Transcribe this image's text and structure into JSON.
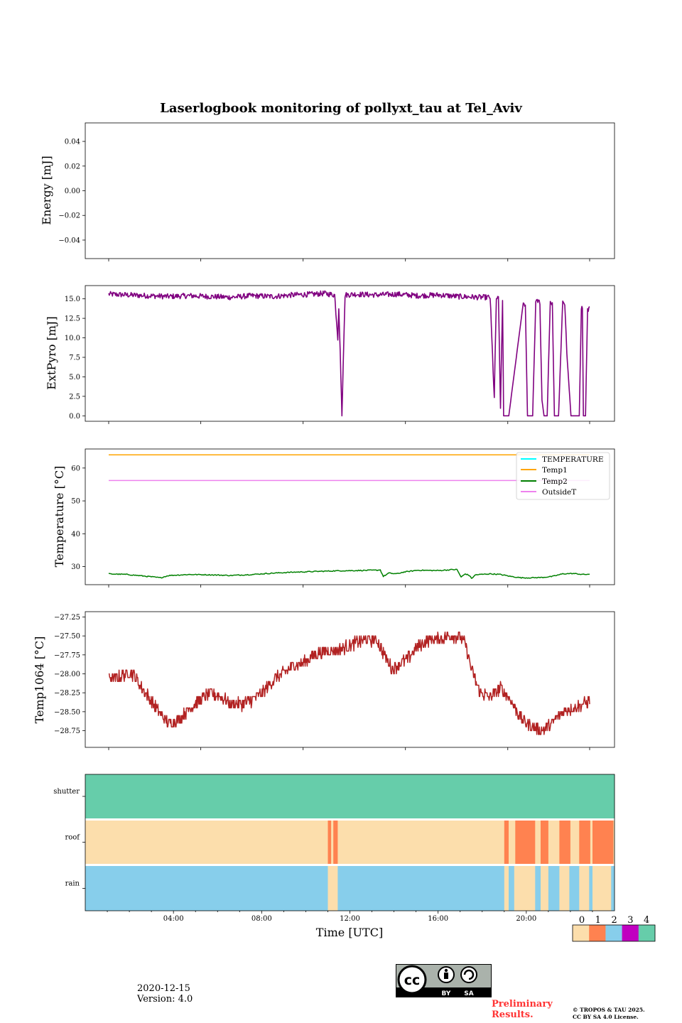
{
  "title": "Laserlogbook monitoring of pollyxt_tau at Tel_Aviv",
  "footer": {
    "date": "2020-12-15",
    "version": "Version: 4.0",
    "preliminary": [
      "Preliminary",
      "Results."
    ],
    "copyright": [
      "© TROPOS & TAU 2025.",
      "CC BY SA 4.0 License."
    ],
    "license_badge": {
      "by": "BY",
      "sa": "SA"
    }
  },
  "colors": {
    "energy": "#800080",
    "extpyro": "#800080",
    "TEMPERATURE": "#00ffff",
    "Temp1": "#ffa500",
    "Temp2": "#008000",
    "OutsideT": "#ee82ee",
    "temp1064": "#b22222",
    "flag_levels": [
      "#fcdeac",
      "#ff8250",
      "#87ceeb",
      "#c000c0",
      "#66cdaa"
    ]
  },
  "chart_data": [
    {
      "type": "line",
      "name": "energy",
      "ylabel": "Energy [mJ]",
      "ylim": [
        -0.055,
        0.055
      ],
      "yticks": [
        0.04,
        0.02,
        0.0,
        -0.02,
        -0.04
      ],
      "ytick_labels": [
        "0.04",
        "0.02",
        "0.00",
        "−0.02",
        "−0.04"
      ],
      "series": []
    },
    {
      "type": "line",
      "name": "extpyro",
      "ylabel": "ExtPyro [mJ]",
      "ylim": [
        -0.7,
        16.7
      ],
      "yticks": [
        15.0,
        12.5,
        10.0,
        7.5,
        5.0,
        2.5,
        0.0
      ],
      "ytick_labels": [
        "15.0",
        "12.5",
        "10.0",
        "7.5",
        "5.0",
        "2.5",
        "0.0"
      ],
      "x_hours": [
        0.1,
        1.0,
        2.0,
        3.0,
        4.0,
        5.0,
        6.0,
        7.0,
        8.0,
        9.0,
        10.0,
        10.5,
        11.0,
        11.15,
        11.2,
        11.3,
        11.35,
        11.5,
        12.0,
        13.0,
        14.0,
        15.0,
        16.0,
        17.0,
        18.0,
        18.5,
        18.7,
        18.8,
        18.9,
        19.0,
        19.1,
        19.15,
        19.2,
        19.3,
        19.4,
        20.1,
        20.2,
        20.3,
        20.4,
        20.55,
        20.7,
        20.8,
        20.9,
        21.0,
        21.1,
        21.15,
        21.25,
        21.4,
        21.5,
        21.6,
        21.7,
        21.8,
        22.0,
        22.1,
        22.2,
        22.4,
        22.5,
        22.6,
        22.8,
        22.9,
        22.95,
        23.0,
        23.05,
        23.1,
        23.2,
        23.3
      ],
      "values": [
        15.6,
        15.5,
        15.4,
        15.3,
        15.4,
        15.3,
        15.2,
        15.4,
        15.3,
        15.5,
        15.6,
        15.7,
        15.5,
        10.0,
        14.0,
        5.0,
        0.0,
        15.5,
        15.6,
        15.5,
        15.6,
        15.4,
        15.5,
        15.3,
        15.2,
        15.2,
        2.2,
        15.1,
        15.0,
        1.2,
        14.8,
        0.0,
        0.0,
        0.0,
        0.0,
        14.5,
        14.2,
        0.0,
        0.0,
        0.0,
        14.5,
        14.7,
        14.6,
        2.0,
        0.0,
        0.0,
        0.0,
        14.6,
        14.5,
        0.0,
        0.0,
        0.0,
        14.7,
        14.4,
        8.0,
        0.0,
        0.0,
        0.0,
        0.0,
        14.0,
        13.8,
        0.0,
        0.0,
        0.0,
        13.5,
        14.0
      ],
      "noise": 0.35
    },
    {
      "type": "line",
      "name": "temperature",
      "ylabel": "Temperature [°C]",
      "ylim": [
        24.5,
        65.8
      ],
      "yticks": [
        60,
        50,
        40,
        30
      ],
      "ytick_labels": [
        "60",
        "50",
        "40",
        "30"
      ],
      "legend": {
        "placement": "top-right",
        "entries": [
          "TEMPERATURE",
          "Temp1",
          "Temp2",
          "OutsideT"
        ]
      },
      "series": [
        {
          "name": "Temp1",
          "x_hours": [
            0.1,
            23.3
          ],
          "values": [
            64.0,
            64.0
          ]
        },
        {
          "name": "OutsideT",
          "x_hours": [
            0.1,
            23.3
          ],
          "values": [
            56.2,
            56.2
          ]
        },
        {
          "name": "Temp2",
          "x_hours": [
            0.1,
            1.0,
            2.0,
            2.6,
            3.0,
            4.0,
            5.0,
            6.0,
            7.0,
            8.0,
            9.0,
            10.0,
            11.0,
            12.0,
            13.0,
            13.2,
            13.35,
            13.6,
            14.0,
            14.3,
            15.0,
            16.0,
            16.5,
            16.7,
            16.9,
            17.1,
            17.3,
            17.5,
            17.6,
            17.8,
            18.0,
            18.5,
            19.0,
            19.5,
            20.0,
            20.5,
            21.0,
            21.5,
            22.0,
            22.5,
            23.0,
            23.3
          ],
          "values": [
            27.8,
            27.6,
            27.0,
            26.6,
            27.3,
            27.6,
            27.5,
            27.3,
            27.6,
            28.0,
            28.3,
            28.5,
            28.7,
            28.8,
            28.9,
            29.0,
            27.0,
            28.0,
            27.8,
            28.3,
            28.9,
            28.8,
            29.0,
            29.1,
            29.1,
            26.8,
            27.8,
            27.3,
            26.4,
            27.5,
            27.6,
            27.8,
            27.6,
            27.0,
            26.6,
            26.6,
            26.7,
            27.0,
            27.8,
            27.9,
            27.6,
            27.7
          ],
          "noise": 0.15
        }
      ]
    },
    {
      "type": "line",
      "name": "temp1064",
      "ylabel": "Temp1064 [°C]",
      "ylim": [
        -28.97,
        -27.18
      ],
      "yticks": [
        -27.25,
        -27.5,
        -27.75,
        -28.0,
        -28.25,
        -28.5,
        -28.75
      ],
      "ytick_labels": [
        "−27.25",
        "−27.50",
        "−27.75",
        "−28.00",
        "−28.25",
        "−28.50",
        "−28.75"
      ],
      "x_hours": [
        0.1,
        0.5,
        1.0,
        1.3,
        1.5,
        2.0,
        2.5,
        3.0,
        3.5,
        4.0,
        4.5,
        5.0,
        5.5,
        6.0,
        6.5,
        7.0,
        7.5,
        8.0,
        8.5,
        9.0,
        9.5,
        10.0,
        10.5,
        11.0,
        11.5,
        12.0,
        12.5,
        13.0,
        13.5,
        13.8,
        14.0,
        14.5,
        15.0,
        15.5,
        16.0,
        16.5,
        17.0,
        17.3,
        17.6,
        18.0,
        18.5,
        19.0,
        19.5,
        20.0,
        20.5,
        21.0,
        21.5,
        22.0,
        22.5,
        23.0,
        23.3
      ],
      "values": [
        -28.05,
        -28.05,
        -28.0,
        -28.0,
        -28.1,
        -28.3,
        -28.5,
        -28.65,
        -28.6,
        -28.45,
        -28.35,
        -28.25,
        -28.3,
        -28.4,
        -28.4,
        -28.35,
        -28.25,
        -28.1,
        -28.0,
        -27.9,
        -27.85,
        -27.75,
        -27.7,
        -27.7,
        -27.65,
        -27.6,
        -27.55,
        -27.55,
        -27.8,
        -27.95,
        -27.9,
        -27.8,
        -27.65,
        -27.55,
        -27.55,
        -27.5,
        -27.5,
        -27.6,
        -27.95,
        -28.25,
        -28.3,
        -28.2,
        -28.35,
        -28.6,
        -28.7,
        -28.75,
        -28.65,
        -28.5,
        -28.45,
        -28.4,
        -28.35
      ],
      "noise": 0.05
    },
    {
      "type": "heatmap",
      "name": "flags",
      "rows": [
        "shutter",
        "roof",
        "rain"
      ],
      "xlabel": "Time [UTC]",
      "xtick_labels": [
        "04:00",
        "08:00",
        "12:00",
        "16:00",
        "20:00"
      ],
      "xtick_hours": [
        4,
        8,
        12,
        16,
        20
      ],
      "xlim_hours": [
        0,
        24
      ],
      "colorbar_ticks": [
        "0",
        "1",
        "2",
        "3",
        "4"
      ],
      "segments": {
        "shutter": [
          [
            0,
            24,
            4
          ]
        ],
        "roof": [
          [
            0,
            11.0,
            0
          ],
          [
            11.0,
            11.15,
            1
          ],
          [
            11.15,
            11.25,
            0
          ],
          [
            11.25,
            11.45,
            1
          ],
          [
            11.45,
            19.0,
            0
          ],
          [
            19.0,
            19.2,
            1
          ],
          [
            19.2,
            19.5,
            0
          ],
          [
            19.5,
            20.4,
            1
          ],
          [
            20.4,
            20.65,
            0
          ],
          [
            20.65,
            21.0,
            1
          ],
          [
            21.0,
            21.5,
            0
          ],
          [
            21.5,
            22.0,
            1
          ],
          [
            22.0,
            22.4,
            0
          ],
          [
            22.4,
            22.9,
            1
          ],
          [
            22.9,
            23.0,
            0
          ],
          [
            23.0,
            23.95,
            1
          ],
          [
            23.95,
            24,
            0
          ]
        ],
        "rain": [
          [
            0,
            11.0,
            2
          ],
          [
            11.0,
            11.45,
            0
          ],
          [
            11.45,
            19.0,
            2
          ],
          [
            19.0,
            19.2,
            0
          ],
          [
            19.2,
            19.45,
            2
          ],
          [
            19.45,
            19.55,
            0
          ],
          [
            19.55,
            20.4,
            0
          ],
          [
            20.4,
            20.65,
            2
          ],
          [
            20.65,
            21.0,
            0
          ],
          [
            21.0,
            21.5,
            2
          ],
          [
            21.5,
            21.95,
            0
          ],
          [
            21.95,
            22.4,
            2
          ],
          [
            22.4,
            22.85,
            0
          ],
          [
            22.85,
            23.0,
            2
          ],
          [
            23.0,
            23.85,
            0
          ],
          [
            23.85,
            24,
            2
          ]
        ]
      }
    }
  ]
}
